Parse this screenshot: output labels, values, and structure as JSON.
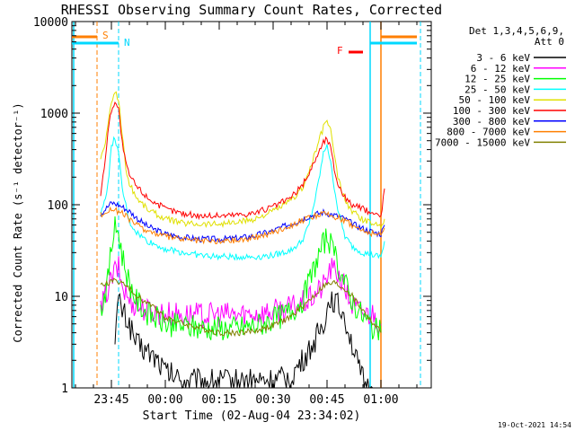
{
  "chart_data": {
    "type": "line",
    "title": "RHESSI Observing Summary Count Rates, Corrected",
    "xlabel": "Start Time (02-Aug-04 23:34:02)",
    "ylabel": "Corrected Count Rate (s⁻¹ detector⁻¹)",
    "y_scale": "log",
    "ylim": [
      1,
      10000
    ],
    "xlim": [
      "23:34",
      "01:14"
    ],
    "x_ticks": [
      "23:45",
      "00:00",
      "00:15",
      "00:30",
      "00:45",
      "01:00"
    ],
    "y_ticks": [
      "1",
      "10",
      "100",
      "1000",
      "10000"
    ],
    "legend_header": [
      "Det 1,3,4,5,6,9,",
      "Att 0"
    ],
    "legend_placement": "right",
    "footer": "19-Oct-2021 14:54",
    "flags": [
      {
        "label": "S",
        "color": "#ff7f00"
      },
      {
        "label": "N",
        "color": "#00d8ff"
      },
      {
        "label": "F",
        "color": "#ff0000"
      }
    ],
    "x_minutes_after_start_of_axis": [],
    "series": [
      {
        "name": "3 - 6 keV",
        "color": "#000000",
        "x": [
          "23:46",
          "23:47",
          "23:48",
          "23:50",
          "23:52",
          "23:55",
          "23:58",
          "00:00",
          "00:05",
          "00:10",
          "00:15",
          "00:20",
          "00:25",
          "00:30",
          "00:35",
          "00:40",
          "00:44",
          "00:46",
          "00:48",
          "00:50",
          "00:52",
          "00:54",
          "00:56",
          "00:58"
        ],
        "values": [
          4,
          9,
          7,
          5,
          3,
          2.5,
          2,
          1.5,
          1.2,
          1.2,
          1.2,
          1.2,
          1.2,
          1.2,
          1.3,
          2.5,
          5,
          10,
          8,
          6,
          3,
          1.5,
          1,
          1
        ]
      },
      {
        "name": "6 - 12 keV",
        "color": "#ff00ff",
        "x": [
          "23:42",
          "23:44",
          "23:46",
          "23:47",
          "23:48",
          "23:50",
          "23:52",
          "23:55",
          "00:00",
          "00:05",
          "00:10",
          "00:15",
          "00:20",
          "00:25",
          "00:30",
          "00:35",
          "00:40",
          "00:44",
          "00:46",
          "00:48",
          "00:50",
          "00:52",
          "00:54",
          "00:56",
          "00:58",
          "01:00"
        ],
        "values": [
          7,
          12,
          19,
          20,
          13,
          9,
          8,
          7,
          6.5,
          6.3,
          6.2,
          6.3,
          6.3,
          6.5,
          6.8,
          7.5,
          9,
          13,
          20,
          18,
          12,
          8,
          7,
          6.5,
          6.5,
          5
        ]
      },
      {
        "name": "12 - 25 keV",
        "color": "#00ff00",
        "x": [
          "23:42",
          "23:44",
          "23:45",
          "23:46",
          "23:47",
          "23:48",
          "23:50",
          "23:52",
          "23:55",
          "00:00",
          "00:05",
          "00:10",
          "00:15",
          "00:20",
          "00:25",
          "00:30",
          "00:35",
          "00:38",
          "00:40",
          "00:42",
          "00:44",
          "00:45",
          "00:47",
          "00:50",
          "00:52",
          "00:55",
          "00:58",
          "01:00"
        ],
        "values": [
          7,
          15,
          35,
          55,
          50,
          28,
          14,
          9,
          6.5,
          5,
          4.7,
          4.5,
          4.5,
          4.5,
          4.8,
          5.5,
          7,
          9,
          14,
          24,
          38,
          45,
          28,
          14,
          9,
          6,
          4.5,
          4
        ]
      },
      {
        "name": "25 - 50 keV",
        "color": "#00ffff",
        "x": [
          "23:42",
          "23:44",
          "23:45",
          "23:46",
          "23:47",
          "23:48",
          "23:50",
          "23:52",
          "23:55",
          "00:00",
          "00:05",
          "00:10",
          "00:15",
          "00:20",
          "00:25",
          "00:30",
          "00:35",
          "00:38",
          "00:40",
          "00:42",
          "00:44",
          "00:45",
          "00:46",
          "00:48",
          "00:50",
          "00:52",
          "00:55",
          "00:58",
          "01:00",
          "01:01"
        ],
        "values": [
          75,
          160,
          420,
          550,
          350,
          150,
          65,
          50,
          40,
          33,
          30,
          28,
          27,
          27,
          27,
          28,
          32,
          40,
          60,
          130,
          360,
          470,
          280,
          90,
          45,
          35,
          30,
          28,
          27,
          40
        ]
      },
      {
        "name": "50 - 100 keV",
        "color": "#e0e000",
        "x": [
          "23:42",
          "23:43",
          "23:44",
          "23:45",
          "23:46",
          "23:47",
          "23:48",
          "23:49",
          "23:50",
          "23:52",
          "23:55",
          "00:00",
          "00:05",
          "00:10",
          "00:15",
          "00:20",
          "00:25",
          "00:30",
          "00:35",
          "00:38",
          "00:40",
          "00:42",
          "00:44",
          "00:45",
          "00:46",
          "00:47",
          "00:48",
          "00:50",
          "00:52",
          "00:55",
          "00:58",
          "01:00",
          "01:01"
        ],
        "values": [
          320,
          420,
          700,
          1300,
          1750,
          1400,
          600,
          250,
          170,
          120,
          90,
          70,
          63,
          62,
          62,
          64,
          70,
          85,
          110,
          150,
          230,
          400,
          700,
          850,
          650,
          350,
          200,
          110,
          85,
          68,
          62,
          60,
          70
        ]
      },
      {
        "name": "100 - 300 keV",
        "color": "#ff0000",
        "x": [
          "23:42",
          "23:43",
          "23:44",
          "23:45",
          "23:46",
          "23:47",
          "23:48",
          "23:49",
          "23:50",
          "23:52",
          "23:55",
          "00:00",
          "00:05",
          "00:10",
          "00:15",
          "00:20",
          "00:25",
          "00:30",
          "00:35",
          "00:38",
          "00:40",
          "00:42",
          "00:44",
          "00:45",
          "00:46",
          "00:47",
          "00:48",
          "00:50",
          "00:52",
          "00:55",
          "00:58",
          "01:00",
          "01:01"
        ],
        "values": [
          130,
          250,
          600,
          1100,
          1350,
          1100,
          480,
          280,
          210,
          160,
          120,
          90,
          80,
          76,
          76,
          78,
          82,
          95,
          120,
          160,
          220,
          330,
          480,
          530,
          420,
          250,
          170,
          120,
          100,
          90,
          80,
          75,
          150
        ]
      },
      {
        "name": "300 - 800 keV",
        "color": "#0000ff",
        "x": [
          "23:42",
          "23:44",
          "23:45",
          "23:46",
          "23:48",
          "23:50",
          "23:52",
          "23:55",
          "00:00",
          "00:05",
          "00:10",
          "00:15",
          "00:20",
          "00:25",
          "00:30",
          "00:35",
          "00:40",
          "00:44",
          "00:48",
          "00:50",
          "00:52",
          "00:55",
          "00:58",
          "01:00",
          "01:01"
        ],
        "values": [
          80,
          95,
          105,
          103,
          95,
          85,
          72,
          58,
          48,
          44,
          42,
          42,
          43,
          46,
          52,
          62,
          75,
          83,
          75,
          70,
          62,
          55,
          50,
          48,
          60
        ]
      },
      {
        "name": "800 - 7000 keV",
        "color": "#ff7f00",
        "x": [
          "23:42",
          "23:44",
          "23:45",
          "23:46",
          "23:48",
          "23:50",
          "23:52",
          "23:55",
          "00:00",
          "00:05",
          "00:10",
          "00:15",
          "00:20",
          "00:25",
          "00:30",
          "00:35",
          "00:40",
          "00:44",
          "00:48",
          "00:50",
          "00:52",
          "00:55",
          "00:58",
          "01:00",
          "01:01"
        ],
        "values": [
          78,
          85,
          90,
          88,
          80,
          70,
          60,
          52,
          45,
          42,
          40,
          40,
          41,
          44,
          50,
          60,
          72,
          80,
          72,
          68,
          60,
          52,
          48,
          46,
          56
        ]
      },
      {
        "name": "7000 - 15000 keV",
        "color": "#808000",
        "x": [
          "23:42",
          "23:44",
          "23:46",
          "23:48",
          "23:50",
          "23:52",
          "23:55",
          "00:00",
          "00:05",
          "00:10",
          "00:15",
          "00:20",
          "00:25",
          "00:30",
          "00:35",
          "00:40",
          "00:44",
          "00:47",
          "00:50",
          "00:52",
          "00:55",
          "00:58",
          "01:00"
        ],
        "values": [
          13,
          14,
          15,
          14,
          12,
          10,
          8.5,
          6,
          5,
          4.5,
          4,
          4,
          4.2,
          4.8,
          6,
          9,
          13,
          14,
          12,
          10,
          7,
          5,
          4
        ]
      }
    ]
  }
}
